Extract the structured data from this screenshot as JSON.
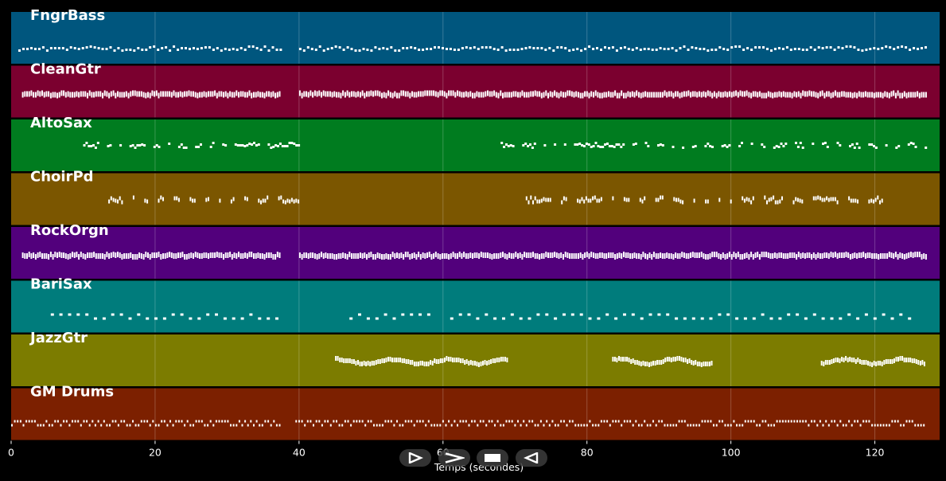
{
  "colors": {
    "background": "#000000",
    "note": "#ffffff",
    "grid": "#ffffff"
  },
  "tracks": [
    {
      "name": "FngrBass",
      "color": "#00567e",
      "pattern": "bass"
    },
    {
      "name": "CleanGtr",
      "color": "#7b002f",
      "pattern": "dense"
    },
    {
      "name": "AltoSax",
      "color": "#007c1f",
      "pattern": "sax"
    },
    {
      "name": "ChoirPd",
      "color": "#7b5600",
      "pattern": "choir"
    },
    {
      "name": "RockOrgn",
      "color": "#52007c",
      "pattern": "dense"
    },
    {
      "name": "BariSax",
      "color": "#007c7c",
      "pattern": "bari"
    },
    {
      "name": "JazzGtr",
      "color": "#7c7c00",
      "pattern": "jazz"
    },
    {
      "name": "GM Drums",
      "color": "#7c2000",
      "pattern": "drums"
    }
  ],
  "x_axis": {
    "label": "Temps (secondes)",
    "min": 0,
    "max": 129,
    "ticks": [
      0,
      20,
      40,
      60,
      80,
      100,
      120
    ],
    "tick_labels": [
      "0",
      "20",
      "40",
      "60",
      "80",
      "100",
      "120"
    ]
  },
  "transport": {
    "play_icon": "play-outline-icon",
    "forward_icon": "forward-chevron-icon",
    "stop_icon": "stop-icon",
    "back_icon": "back-outline-icon"
  },
  "chart_data": {
    "type": "scatter",
    "title": "",
    "xlabel": "Temps (secondes)",
    "ylabel": "",
    "xlim": [
      0,
      129
    ],
    "series": [
      {
        "name": "FngrBass",
        "segments": [
          [
            1,
            37.5
          ],
          [
            40,
            127
          ]
        ]
      },
      {
        "name": "CleanGtr",
        "segments": [
          [
            1.5,
            37.5
          ],
          [
            40,
            127
          ]
        ]
      },
      {
        "name": "AltoSax",
        "segments": [
          [
            10,
            40
          ],
          [
            68,
            127
          ]
        ]
      },
      {
        "name": "ChoirPd",
        "segments": [
          [
            13.5,
            40
          ],
          [
            71.5,
            121
          ]
        ]
      },
      {
        "name": "RockOrgn",
        "segments": [
          [
            1.5,
            37.5
          ],
          [
            40,
            127
          ]
        ]
      },
      {
        "name": "BariSax",
        "segments": [
          [
            5.5,
            37.5
          ],
          [
            47,
            58.5
          ],
          [
            61,
            125
          ]
        ]
      },
      {
        "name": "JazzGtr",
        "segments": [
          [
            45,
            69
          ],
          [
            83.5,
            97.5
          ],
          [
            112.5,
            127
          ]
        ]
      },
      {
        "name": "GM Drums",
        "segments": [
          [
            0,
            37.5
          ],
          [
            39.5,
            127
          ]
        ]
      }
    ]
  }
}
